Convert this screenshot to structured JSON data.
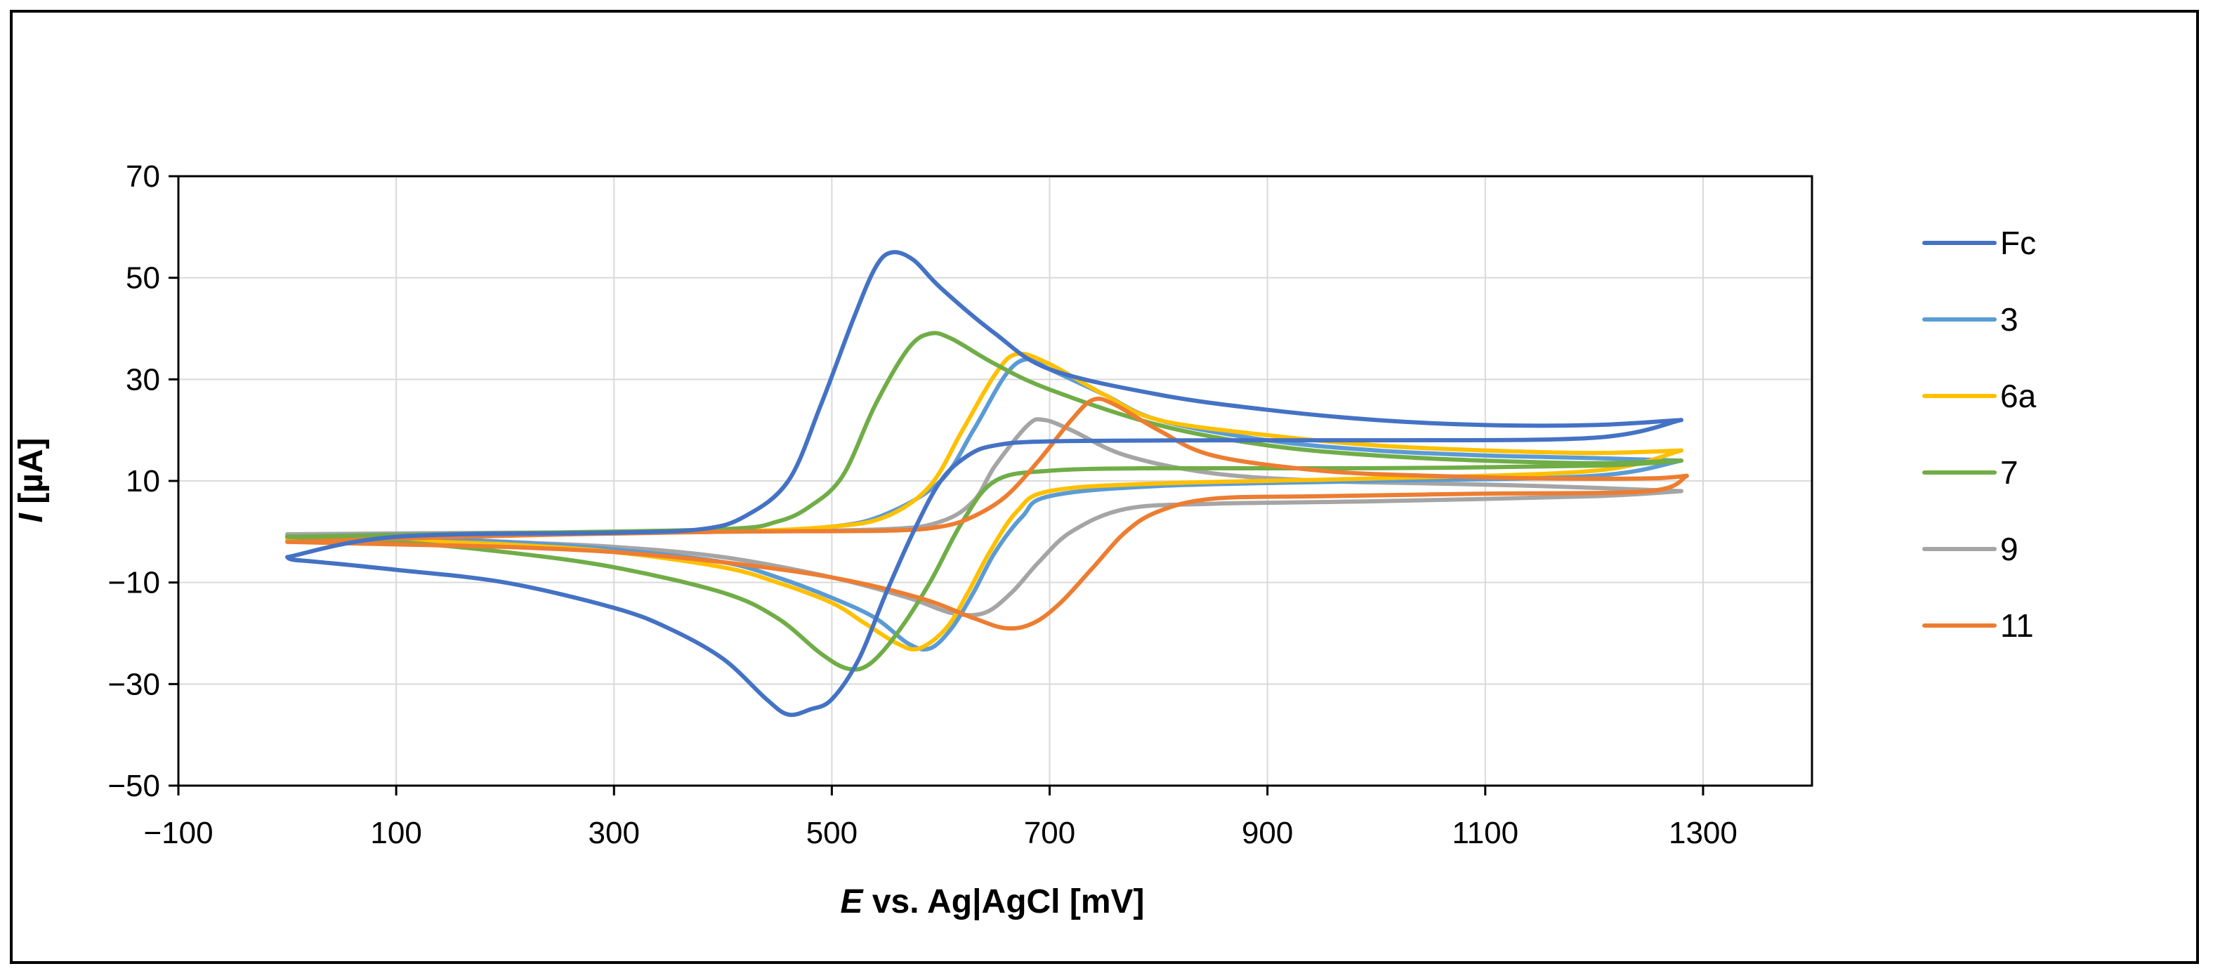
{
  "chart_data": {
    "type": "line",
    "subtype": "cyclic-voltammogram",
    "xlabel_italic": "E",
    "xlabel_rest": " vs. Ag|AgCl [mV]",
    "ylabel_italic": "I",
    "ylabel_rest": " [µA]",
    "xlim": [
      -100,
      1400
    ],
    "ylim": [
      -50,
      70
    ],
    "xticks": [
      -100,
      100,
      300,
      500,
      700,
      900,
      1100,
      1300
    ],
    "yticks": [
      -50,
      -30,
      -10,
      10,
      30,
      50,
      70
    ],
    "xtick_labels": [
      "−100",
      "100",
      "300",
      "500",
      "700",
      "900",
      "1100",
      "1300"
    ],
    "ytick_labels": [
      "−50",
      "−30",
      "−10",
      "10",
      "30",
      "50",
      "70"
    ],
    "grid": true,
    "legend_position": "right",
    "series": [
      {
        "name": "Fc",
        "color": "#4472C4",
        "forward": [
          [
            0,
            -5
          ],
          [
            100,
            -1
          ],
          [
            300,
            -0.2
          ],
          [
            380,
            0.5
          ],
          [
            420,
            3
          ],
          [
            460,
            10
          ],
          [
            490,
            25
          ],
          [
            520,
            42
          ],
          [
            540,
            52
          ],
          [
            555,
            55
          ],
          [
            575,
            53.5
          ],
          [
            600,
            48
          ],
          [
            650,
            39
          ],
          [
            700,
            32
          ],
          [
            800,
            27
          ],
          [
            900,
            24
          ],
          [
            1000,
            22
          ],
          [
            1100,
            21
          ],
          [
            1200,
            21
          ],
          [
            1280,
            22
          ]
        ],
        "reverse": [
          [
            1280,
            22
          ],
          [
            1200,
            18.5
          ],
          [
            1000,
            18
          ],
          [
            850,
            18
          ],
          [
            700,
            17.8
          ],
          [
            650,
            17
          ],
          [
            625,
            15
          ],
          [
            600,
            10
          ],
          [
            575,
            0
          ],
          [
            550,
            -12
          ],
          [
            525,
            -25
          ],
          [
            500,
            -33
          ],
          [
            480,
            -35
          ],
          [
            460,
            -36
          ],
          [
            440,
            -33
          ],
          [
            400,
            -25
          ],
          [
            350,
            -19
          ],
          [
            300,
            -15
          ],
          [
            200,
            -10
          ],
          [
            100,
            -7.5
          ],
          [
            30,
            -6
          ],
          [
            5,
            -5.5
          ],
          [
            0,
            -5
          ]
        ]
      },
      {
        "name": "3",
        "color": "#5B9BD5",
        "forward": [
          [
            0,
            -1
          ],
          [
            200,
            -0.3
          ],
          [
            400,
            0
          ],
          [
            500,
            1
          ],
          [
            550,
            3.5
          ],
          [
            600,
            10
          ],
          [
            630,
            20
          ],
          [
            660,
            31
          ],
          [
            680,
            34
          ],
          [
            700,
            32
          ],
          [
            750,
            27
          ],
          [
            800,
            22
          ],
          [
            900,
            18
          ],
          [
            1000,
            16
          ],
          [
            1100,
            15
          ],
          [
            1200,
            14.5
          ],
          [
            1280,
            14
          ]
        ],
        "reverse": [
          [
            1280,
            14
          ],
          [
            1200,
            11
          ],
          [
            1000,
            10
          ],
          [
            800,
            9
          ],
          [
            700,
            7
          ],
          [
            675,
            3
          ],
          [
            650,
            -4
          ],
          [
            630,
            -12
          ],
          [
            610,
            -19
          ],
          [
            590,
            -23
          ],
          [
            570,
            -22
          ],
          [
            540,
            -17
          ],
          [
            500,
            -13
          ],
          [
            450,
            -9
          ],
          [
            400,
            -6
          ],
          [
            300,
            -3.5
          ],
          [
            200,
            -2
          ],
          [
            100,
            -1.2
          ],
          [
            0,
            -1
          ]
        ]
      },
      {
        "name": "6a",
        "color": "#FFC000",
        "forward": [
          [
            0,
            -1.5
          ],
          [
            200,
            -0.5
          ],
          [
            400,
            0
          ],
          [
            500,
            1
          ],
          [
            550,
            3
          ],
          [
            590,
            9
          ],
          [
            620,
            20
          ],
          [
            650,
            31
          ],
          [
            670,
            35
          ],
          [
            700,
            33
          ],
          [
            750,
            27
          ],
          [
            800,
            22
          ],
          [
            900,
            19
          ],
          [
            1000,
            17
          ],
          [
            1100,
            16
          ],
          [
            1200,
            15.5
          ],
          [
            1280,
            16
          ]
        ],
        "reverse": [
          [
            1280,
            16
          ],
          [
            1200,
            12
          ],
          [
            1000,
            10.5
          ],
          [
            800,
            9.5
          ],
          [
            700,
            8
          ],
          [
            670,
            4
          ],
          [
            645,
            -4
          ],
          [
            625,
            -12
          ],
          [
            605,
            -19
          ],
          [
            580,
            -23
          ],
          [
            560,
            -22
          ],
          [
            530,
            -18
          ],
          [
            500,
            -14
          ],
          [
            450,
            -10
          ],
          [
            400,
            -7
          ],
          [
            300,
            -4
          ],
          [
            200,
            -2.5
          ],
          [
            100,
            -1.8
          ],
          [
            0,
            -1.5
          ]
        ]
      },
      {
        "name": "7",
        "color": "#70AD47",
        "forward": [
          [
            0,
            -1
          ],
          [
            200,
            -0.3
          ],
          [
            400,
            0.5
          ],
          [
            450,
            2
          ],
          [
            480,
            5
          ],
          [
            510,
            11
          ],
          [
            540,
            25
          ],
          [
            570,
            36
          ],
          [
            590,
            39
          ],
          [
            610,
            38
          ],
          [
            650,
            33
          ],
          [
            700,
            28
          ],
          [
            800,
            21
          ],
          [
            900,
            17
          ],
          [
            1000,
            15
          ],
          [
            1100,
            14
          ],
          [
            1200,
            13.5
          ],
          [
            1280,
            14
          ]
        ],
        "reverse": [
          [
            1280,
            14
          ],
          [
            1200,
            13
          ],
          [
            1000,
            12.5
          ],
          [
            800,
            12.5
          ],
          [
            700,
            12
          ],
          [
            650,
            10
          ],
          [
            620,
            2
          ],
          [
            590,
            -10
          ],
          [
            560,
            -20
          ],
          [
            535,
            -26
          ],
          [
            515,
            -27
          ],
          [
            490,
            -24
          ],
          [
            450,
            -17
          ],
          [
            400,
            -12
          ],
          [
            300,
            -7
          ],
          [
            200,
            -4
          ],
          [
            100,
            -2
          ],
          [
            0,
            -1
          ]
        ]
      },
      {
        "name": "9",
        "color": "#A5A5A5",
        "forward": [
          [
            0,
            -0.5
          ],
          [
            200,
            -0.2
          ],
          [
            400,
            0
          ],
          [
            550,
            0.5
          ],
          [
            600,
            2
          ],
          [
            630,
            6
          ],
          [
            650,
            13
          ],
          [
            680,
            21
          ],
          [
            695,
            22
          ],
          [
            720,
            20
          ],
          [
            770,
            15
          ],
          [
            850,
            11.5
          ],
          [
            950,
            10
          ],
          [
            1050,
            9.5
          ],
          [
            1150,
            9
          ],
          [
            1280,
            8
          ]
        ],
        "reverse": [
          [
            1280,
            8
          ],
          [
            1200,
            7
          ],
          [
            1000,
            6
          ],
          [
            850,
            5.5
          ],
          [
            770,
            4.5
          ],
          [
            720,
            0
          ],
          [
            690,
            -6
          ],
          [
            665,
            -12
          ],
          [
            640,
            -16
          ],
          [
            610,
            -16
          ],
          [
            570,
            -13
          ],
          [
            500,
            -9
          ],
          [
            400,
            -5
          ],
          [
            300,
            -3
          ],
          [
            200,
            -2
          ],
          [
            100,
            -1
          ],
          [
            0,
            -0.5
          ]
        ]
      },
      {
        "name": "11",
        "color": "#ED7D31",
        "forward": [
          [
            0,
            -2
          ],
          [
            200,
            -0.8
          ],
          [
            400,
            0
          ],
          [
            550,
            0.2
          ],
          [
            600,
            1
          ],
          [
            630,
            3
          ],
          [
            660,
            7
          ],
          [
            690,
            14
          ],
          [
            720,
            22
          ],
          [
            740,
            26
          ],
          [
            760,
            25
          ],
          [
            800,
            20
          ],
          [
            850,
            15
          ],
          [
            950,
            12
          ],
          [
            1050,
            11
          ],
          [
            1150,
            10.5
          ],
          [
            1250,
            10.5
          ],
          [
            1285,
            11
          ]
        ],
        "reverse": [
          [
            1285,
            11
          ],
          [
            1250,
            8
          ],
          [
            1100,
            7.5
          ],
          [
            950,
            7
          ],
          [
            850,
            6.5
          ],
          [
            800,
            4
          ],
          [
            770,
            0
          ],
          [
            740,
            -7
          ],
          [
            710,
            -14
          ],
          [
            685,
            -18
          ],
          [
            660,
            -19
          ],
          [
            630,
            -17
          ],
          [
            580,
            -13
          ],
          [
            500,
            -9
          ],
          [
            400,
            -6
          ],
          [
            300,
            -4
          ],
          [
            200,
            -3
          ],
          [
            100,
            -2.5
          ],
          [
            0,
            -2
          ]
        ]
      }
    ]
  }
}
